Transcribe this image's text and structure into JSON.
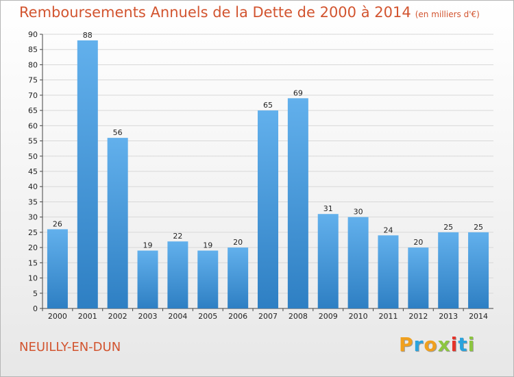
{
  "title": "Remboursements Annuels de la Dette de 2000 à 2014",
  "unit": "(en milliers d'€)",
  "commune": "NEUILLY-EN-DUN",
  "logo": {
    "letters": [
      "P",
      "r",
      "o",
      "x",
      "i",
      "t",
      "i"
    ],
    "colors": [
      "#f0a01e",
      "#2aa3dd",
      "#f0a01e",
      "#8cc63f",
      "#e5332a",
      "#2aa3dd",
      "#8cc63f"
    ]
  },
  "colors": {
    "title": "#d2542f",
    "bar_light": "#62b0ec",
    "bar_dark": "#2e7fc3",
    "grid": "#d8d8d8"
  },
  "chart_data": {
    "type": "bar",
    "categories": [
      "2000",
      "2001",
      "2002",
      "2003",
      "2004",
      "2005",
      "2006",
      "2007",
      "2008",
      "2009",
      "2010",
      "2011",
      "2012",
      "2013",
      "2014"
    ],
    "values": [
      26,
      88,
      56,
      19,
      22,
      19,
      20,
      65,
      69,
      31,
      30,
      24,
      20,
      25,
      25
    ],
    "title": "Remboursements Annuels de la Dette de 2000 à 2014",
    "xlabel": "",
    "ylabel": "",
    "ylim": [
      0,
      90
    ],
    "yticks": [
      0,
      5,
      10,
      15,
      20,
      25,
      30,
      35,
      40,
      45,
      50,
      55,
      60,
      65,
      70,
      75,
      80,
      85,
      90
    ],
    "grid": true,
    "legend": "none"
  }
}
